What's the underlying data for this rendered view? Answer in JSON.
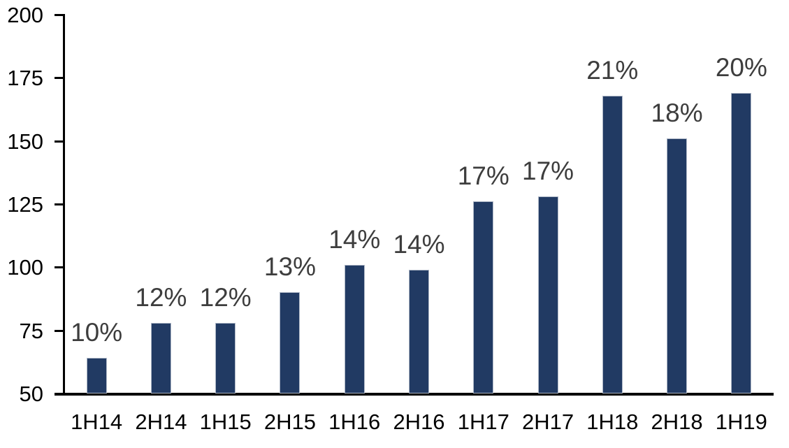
{
  "chart_data": {
    "type": "bar",
    "title": "",
    "xlabel": "",
    "ylabel": "",
    "categories": [
      "1H14",
      "2H14",
      "1H15",
      "2H15",
      "1H16",
      "2H16",
      "1H17",
      "2H17",
      "1H18",
      "2H18",
      "1H19"
    ],
    "values": [
      64,
      78,
      78,
      90,
      101,
      99,
      126,
      128,
      168,
      151,
      169
    ],
    "bar_labels": [
      "10%",
      "12%",
      "12%",
      "13%",
      "14%",
      "14%",
      "17%",
      "17%",
      "21%",
      "18%",
      "20%"
    ],
    "ylim": [
      50,
      200
    ],
    "yticks": [
      50,
      75,
      100,
      125,
      150,
      175,
      200
    ],
    "grid": "off",
    "legend": "none",
    "colors": {
      "bar_fill": "#213A63",
      "bar_border": "#AEB7C6",
      "value_label": "#3D3D3D",
      "axis": "#000000",
      "tick_label": "#000000",
      "background": "#FFFFFF"
    }
  }
}
